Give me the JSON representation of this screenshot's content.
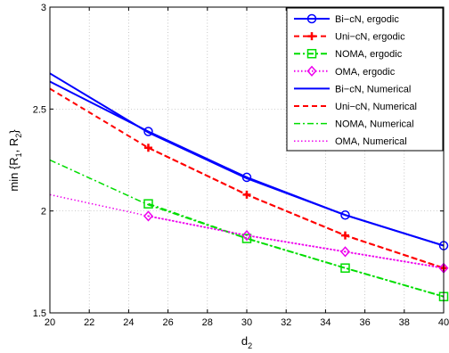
{
  "chart_data": {
    "type": "line",
    "xlabel": "d",
    "xlabel_sub": "2",
    "ylabel": "min {R",
    "ylabel_sub1": "1",
    "ylabel_mid": ", R",
    "ylabel_sub2": "2",
    "ylabel_end": "}",
    "xlim": [
      20,
      40
    ],
    "ylim": [
      1.5,
      3
    ],
    "x_ticks": [
      "20",
      "22",
      "24",
      "26",
      "28",
      "30",
      "32",
      "34",
      "36",
      "38",
      "40"
    ],
    "y_ticks": [
      "1.5",
      "2",
      "2.5",
      "3"
    ],
    "grid": true,
    "legend_position": "top-right",
    "series": [
      {
        "name": "Bi−cN, ergodic",
        "color": "#0000ff",
        "dash": "none",
        "marker": "circle",
        "x": [
          25,
          30,
          35,
          40
        ],
        "y": [
          2.39,
          2.165,
          1.98,
          1.83
        ]
      },
      {
        "name": "Uni−cN, ergodic",
        "color": "#ff0000",
        "dash": "6,4",
        "marker": "plus",
        "x": [
          25,
          30,
          35,
          40
        ],
        "y": [
          2.31,
          2.08,
          1.88,
          1.72
        ]
      },
      {
        "name": "NOMA, ergodic",
        "color": "#00dd00",
        "dash": "7,3,2,3",
        "marker": "square",
        "x": [
          25,
          30,
          35,
          40
        ],
        "y": [
          2.035,
          1.865,
          1.72,
          1.58
        ]
      },
      {
        "name": "OMA, ergodic",
        "color": "#ee00ee",
        "dash": "1.5,2.5",
        "marker": "diamond",
        "x": [
          25,
          30,
          35,
          40
        ],
        "y": [
          1.975,
          1.88,
          1.8,
          1.72
        ]
      },
      {
        "name": "Bi−cN, Numerical",
        "color": "#0000ff",
        "dash": "none",
        "marker": "none",
        "width": 2,
        "x": [
          20,
          25,
          30,
          35,
          40
        ],
        "y": [
          2.675,
          2.385,
          2.16,
          1.98,
          1.83
        ]
      },
      {
        "name": "Uni−cN, Numerical",
        "color": "#ff0000",
        "dash": "6,4",
        "marker": "none",
        "width": 2,
        "x": [
          20,
          25,
          30,
          35,
          40
        ],
        "y": [
          2.6,
          2.31,
          2.08,
          1.88,
          1.72
        ]
      },
      {
        "name": "NOMA, Numerical",
        "color": "#00dd00",
        "dash": "7,3,2,3",
        "marker": "none",
        "width": 1.5,
        "x": [
          20,
          25,
          30,
          35,
          40
        ],
        "y": [
          2.25,
          2.03,
          1.865,
          1.72,
          1.58
        ]
      },
      {
        "name": "OMA, Numerical",
        "color": "#ee00ee",
        "dash": "1.5,2.5",
        "marker": "none",
        "width": 1.5,
        "x": [
          20,
          25,
          30,
          35,
          40
        ],
        "y": [
          2.08,
          1.975,
          1.88,
          1.8,
          1.72
        ]
      }
    ],
    "extra_lines": [
      {
        "color": "#0000ff",
        "width": 2,
        "x": [
          20,
          25
        ],
        "y": [
          2.635,
          2.39
        ]
      }
    ]
  }
}
